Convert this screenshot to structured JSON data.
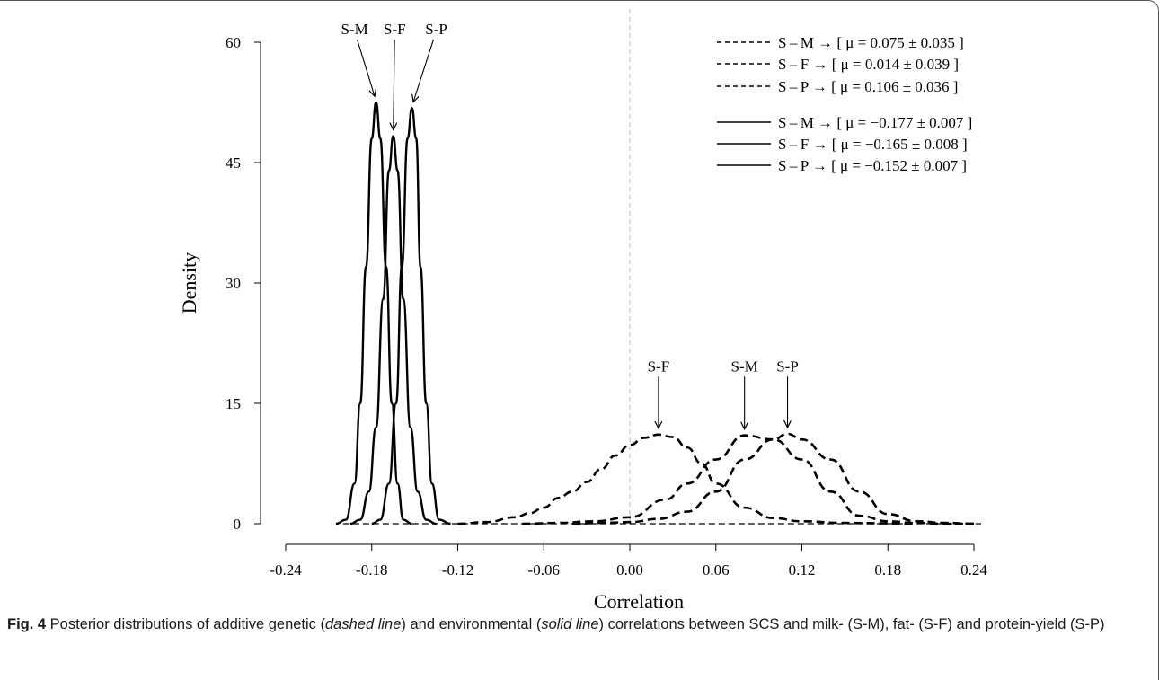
{
  "chart_data": {
    "type": "line",
    "xlabel": "Correlation",
    "ylabel": "Density",
    "xlim": [
      -0.24,
      0.24
    ],
    "ylim": [
      0,
      60
    ],
    "xticks": [
      "-0.24",
      "-0.18",
      "-0.12",
      "-0.06",
      "0.00",
      "0.06",
      "0.12",
      "0.18",
      "0.24"
    ],
    "yticks": [
      "0",
      "15",
      "30",
      "45",
      "60"
    ],
    "reference_line": {
      "x": 0.0,
      "style": "dashed",
      "color": "#bbbbbb"
    },
    "series": [
      {
        "name": "S-M",
        "group": "additive genetic",
        "style": "dashed",
        "legend": "S – M →  [ μ = 0.075 ± 0.035 ]",
        "mean": 0.075,
        "sd": 0.035,
        "x": [
          -0.075,
          -0.05,
          -0.025,
          0.0,
          0.025,
          0.04,
          0.06,
          0.08,
          0.1,
          0.12,
          0.14,
          0.16,
          0.18,
          0.2,
          0.22,
          0.24
        ],
        "y": [
          0,
          0.1,
          0.3,
          0.8,
          3,
          5,
          8,
          11,
          10.5,
          8,
          4,
          1,
          0.3,
          0.1,
          0,
          0
        ]
      },
      {
        "name": "S-F",
        "group": "additive genetic",
        "style": "dashed",
        "legend": "S – F →  [ μ = 0.014 ± 0.039 ]",
        "mean": 0.014,
        "sd": 0.039,
        "x": [
          -0.12,
          -0.1,
          -0.08,
          -0.07,
          -0.06,
          -0.05,
          -0.04,
          -0.03,
          -0.02,
          -0.01,
          0.0,
          0.01,
          0.02,
          0.03,
          0.04,
          0.05,
          0.06,
          0.08,
          0.1,
          0.12,
          0.15,
          0.18,
          0.2
        ],
        "y": [
          0,
          0.2,
          0.8,
          1.3,
          2.0,
          3.2,
          4.0,
          5.2,
          6.8,
          8.5,
          9.8,
          10.7,
          11.1,
          10.8,
          9.5,
          7.5,
          5.0,
          2.0,
          0.7,
          0.3,
          0.1,
          0.05,
          0
        ]
      },
      {
        "name": "S-P",
        "group": "additive genetic",
        "style": "dashed",
        "legend": "S – P →  [ μ = 0.106 ± 0.036 ]",
        "mean": 0.106,
        "sd": 0.036,
        "x": [
          -0.04,
          -0.02,
          0.0,
          0.02,
          0.04,
          0.06,
          0.08,
          0.1,
          0.11,
          0.12,
          0.14,
          0.16,
          0.18,
          0.2,
          0.22,
          0.24
        ],
        "y": [
          0,
          0.1,
          0.2,
          0.6,
          1.5,
          4,
          8,
          10.5,
          11.2,
          10.5,
          8,
          4,
          1.2,
          0.3,
          0.1,
          0
        ]
      },
      {
        "name": "S-M",
        "group": "environmental",
        "style": "solid",
        "legend": "S – M →  [ μ = −0.177 ± 0.007 ]",
        "mean": -0.177,
        "sd": 0.007,
        "x": [
          -0.205,
          -0.198,
          -0.192,
          -0.188,
          -0.184,
          -0.18,
          -0.177,
          -0.174,
          -0.17,
          -0.166,
          -0.162,
          -0.158,
          -0.152
        ],
        "y": [
          0,
          0.5,
          5,
          15,
          32,
          48,
          52.5,
          48,
          32,
          15,
          5,
          0.5,
          0
        ]
      },
      {
        "name": "S-F",
        "group": "environmental",
        "style": "solid",
        "legend": "S – F →  [ μ = −0.165 ± 0.008 ]",
        "mean": -0.165,
        "sd": 0.008,
        "x": [
          -0.195,
          -0.188,
          -0.182,
          -0.177,
          -0.172,
          -0.168,
          -0.165,
          -0.162,
          -0.158,
          -0.153,
          -0.148,
          -0.142,
          -0.135
        ],
        "y": [
          0,
          0.5,
          4,
          12,
          28,
          44,
          48.3,
          44,
          28,
          12,
          4,
          0.5,
          0
        ]
      },
      {
        "name": "S-P",
        "group": "environmental",
        "style": "solid",
        "legend": "S – P →  [ μ = −0.152 ± 0.007 ]",
        "mean": -0.152,
        "sd": 0.007,
        "x": [
          -0.18,
          -0.174,
          -0.168,
          -0.163,
          -0.159,
          -0.155,
          -0.152,
          -0.149,
          -0.146,
          -0.142,
          -0.138,
          -0.133,
          -0.125
        ],
        "y": [
          0,
          0.5,
          5,
          15,
          32,
          48,
          51.8,
          48,
          32,
          15,
          5,
          0.5,
          0
        ]
      }
    ],
    "annotations": [
      {
        "text": "S-M",
        "at": [
          -0.177,
          52.5
        ],
        "label_pos": [
          -0.192,
          61
        ]
      },
      {
        "text": "S-F",
        "at": [
          -0.165,
          48.3
        ],
        "label_pos": [
          -0.164,
          61
        ]
      },
      {
        "text": "S-P",
        "at": [
          -0.152,
          51.8
        ],
        "label_pos": [
          -0.135,
          61
        ]
      },
      {
        "text": "S-F",
        "at": [
          0.02,
          11.1
        ],
        "label_pos": [
          0.02,
          19
        ]
      },
      {
        "text": "S-M",
        "at": [
          0.08,
          11
        ],
        "label_pos": [
          0.08,
          19
        ]
      },
      {
        "text": "S-P",
        "at": [
          0.11,
          11.2
        ],
        "label_pos": [
          0.11,
          19
        ]
      }
    ]
  },
  "caption": {
    "fig_label": "Fig. 4",
    "text_before": " Posterior distributions of additive genetic (",
    "dashed_term": "dashed line",
    "text_middle": ") and environmental (",
    "solid_term": "solid line",
    "text_after": ") correlations between SCS and milk- (S-M), fat- (S-F) and protein-yield (S-P)"
  }
}
